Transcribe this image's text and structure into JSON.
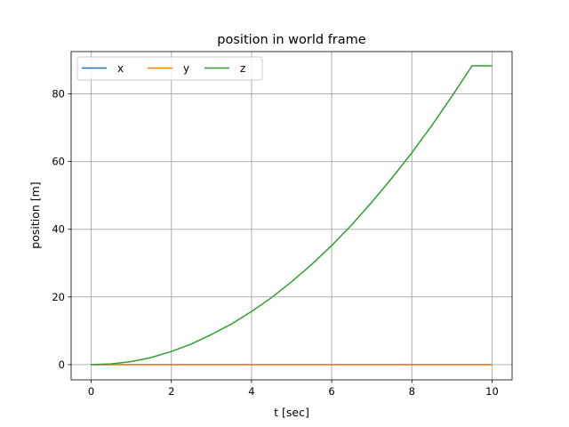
{
  "chart_data": {
    "type": "line",
    "title": "position in world frame",
    "xlabel": "t [sec]",
    "ylabel": "position [m]",
    "xlim": [
      -0.5,
      10.5
    ],
    "ylim": [
      -4.5,
      92.5
    ],
    "xticks": [
      0,
      2,
      4,
      6,
      8,
      10
    ],
    "xtick_labels": [
      "0",
      "2",
      "4",
      "6",
      "8",
      "10"
    ],
    "yticks": [
      0,
      20,
      40,
      60,
      80
    ],
    "ytick_labels": [
      "0",
      "20",
      "40",
      "60",
      "80"
    ],
    "grid": true,
    "legend": {
      "placement": "top-left",
      "columns": 3
    },
    "x": [
      0,
      0.5,
      1,
      1.5,
      2,
      2.5,
      3,
      3.5,
      4,
      4.5,
      5,
      5.5,
      6,
      6.5,
      7,
      7.5,
      8,
      8.5,
      9,
      9.5,
      10
    ],
    "series": [
      {
        "name": "x",
        "color": "#1f77b4",
        "values": [
          0,
          0,
          0,
          0,
          0,
          0,
          0,
          0,
          0,
          0,
          0,
          0,
          0,
          0,
          0,
          0,
          0,
          0,
          0,
          0,
          0
        ]
      },
      {
        "name": "y",
        "color": "#ff7f0e",
        "values": [
          0,
          0,
          0,
          0,
          0,
          0,
          0,
          0,
          0,
          0,
          0,
          0,
          0,
          0,
          0,
          0,
          0,
          0,
          0,
          0,
          0
        ]
      },
      {
        "name": "z",
        "color": "#2ca02c",
        "values": [
          0,
          0.2,
          0.9,
          2.1,
          3.9,
          6.1,
          8.9,
          12.0,
          15.7,
          19.8,
          24.5,
          29.6,
          35.2,
          41.3,
          48.0,
          55.1,
          62.6,
          70.7,
          79.3,
          88.3,
          88.3
        ]
      }
    ]
  }
}
